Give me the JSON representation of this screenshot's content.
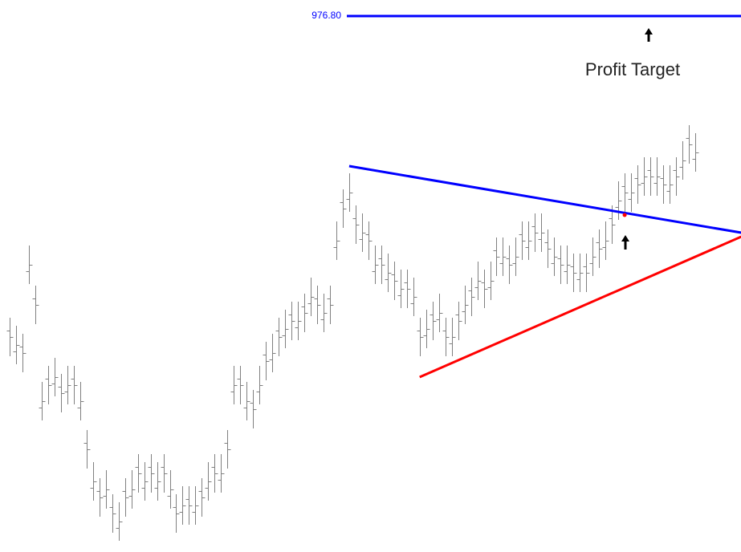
{
  "chart_data": {
    "type": "ohlc",
    "ylim": [
      809.8,
      981.8
    ],
    "bar_color": "#808080",
    "open": [
      878.8,
      872.3,
      873.8,
      897.3,
      888.8,
      854.8,
      863.8,
      862.3,
      861.3,
      859.8,
      863.8,
      854.8,
      843.8,
      829.8,
      828.8,
      827.3,
      823.8,
      817.3,
      828.8,
      827.3,
      836.3,
      829.8,
      836.3,
      829.8,
      836.3,
      827.3,
      823.8,
      822.3,
      826.3,
      822.3,
      828.8,
      829.8,
      836.3,
      832.3,
      843.8,
      859.8,
      863.8,
      854.8,
      856.3,
      859.8,
      871.3,
      869.8,
      878.8,
      877.3,
      883.8,
      879.8,
      886.3,
      887.3,
      888.8,
      882.3,
      888.8,
      904.8,
      918.8,
      919.8,
      913.8,
      907.3,
      908.8,
      897.3,
      901.3,
      894.8,
      896.3,
      889.8,
      893.8,
      887.3,
      878.8,
      877.3,
      883.8,
      882.3,
      878.8,
      874.8,
      883.8,
      884.8,
      891.3,
      892.3,
      893.8,
      892.3,
      903.8,
      899.8,
      901.3,
      899.8,
      908.8,
      904.8,
      911.3,
      907.3,
      906.3,
      899.8,
      901.3,
      897.3,
      898.8,
      894.8,
      898.8,
      899.8,
      906.3,
      904.8,
      913.8,
      917.3,
      923.8,
      919.8,
      926.3,
      924.8,
      928.8,
      924.8,
      926.3,
      922.3,
      928.8,
      929.8,
      938.8,
      932.3
    ],
    "high": [
      882.8,
      880.3,
      877.8,
      905.3,
      892.8,
      862.8,
      867.8,
      870.3,
      865.3,
      867.8,
      867.8,
      862.8,
      847.8,
      837.8,
      832.8,
      835.3,
      827.8,
      825.3,
      832.8,
      835.3,
      840.3,
      837.8,
      840.3,
      837.8,
      840.3,
      835.3,
      827.8,
      830.3,
      830.3,
      830.3,
      832.8,
      837.8,
      840.3,
      840.3,
      847.8,
      867.8,
      867.8,
      862.8,
      860.3,
      867.8,
      875.3,
      877.8,
      882.8,
      885.3,
      887.8,
      887.8,
      890.3,
      895.3,
      892.8,
      890.3,
      892.8,
      912.8,
      922.8,
      927.8,
      917.8,
      915.3,
      912.8,
      905.3,
      905.3,
      902.8,
      900.3,
      897.8,
      897.8,
      895.3,
      882.8,
      885.3,
      887.8,
      890.3,
      882.8,
      882.8,
      887.8,
      892.8,
      895.3,
      900.3,
      897.8,
      900.3,
      907.8,
      907.8,
      905.3,
      907.8,
      912.8,
      912.8,
      915.3,
      915.3,
      910.3,
      907.8,
      905.3,
      905.3,
      902.8,
      902.8,
      902.8,
      907.8,
      910.3,
      912.8,
      917.8,
      925.3,
      927.8,
      927.8,
      930.3,
      932.8,
      932.8,
      932.8,
      930.3,
      930.3,
      932.8,
      937.8,
      942.8,
      940.3
    ],
    "low": [
      870.8,
      868.3,
      865.8,
      893.3,
      880.8,
      850.8,
      855.8,
      858.3,
      853.3,
      855.8,
      855.8,
      850.8,
      835.8,
      825.8,
      820.8,
      823.3,
      815.8,
      813.3,
      820.8,
      823.3,
      828.3,
      825.8,
      828.3,
      825.8,
      828.3,
      823.3,
      815.8,
      818.3,
      818.3,
      818.3,
      820.8,
      825.8,
      828.3,
      828.3,
      835.8,
      855.8,
      855.8,
      850.8,
      848.3,
      855.8,
      863.3,
      865.8,
      870.8,
      873.3,
      875.8,
      875.8,
      878.3,
      883.3,
      880.8,
      878.3,
      880.8,
      900.8,
      910.8,
      915.8,
      905.8,
      903.3,
      900.8,
      893.3,
      893.3,
      890.8,
      888.3,
      885.8,
      885.8,
      883.3,
      870.8,
      873.3,
      875.8,
      878.3,
      870.8,
      870.8,
      875.8,
      880.8,
      883.3,
      888.3,
      885.8,
      888.3,
      895.8,
      895.8,
      893.3,
      895.8,
      900.8,
      900.8,
      903.3,
      903.3,
      898.3,
      895.8,
      893.3,
      893.3,
      890.8,
      890.8,
      890.8,
      895.8,
      898.3,
      900.8,
      905.8,
      913.3,
      915.8,
      915.8,
      918.3,
      920.8,
      920.8,
      920.8,
      918.3,
      918.3,
      920.8,
      925.8,
      930.8,
      928.3
    ],
    "close": [
      876.8,
      874.3,
      871.8,
      899.3,
      886.8,
      856.8,
      861.8,
      864.3,
      859.3,
      861.8,
      861.8,
      856.8,
      841.8,
      831.8,
      826.8,
      829.3,
      821.8,
      819.3,
      826.8,
      829.3,
      834.3,
      831.8,
      834.3,
      831.8,
      834.3,
      829.3,
      821.8,
      824.3,
      824.3,
      824.3,
      826.8,
      831.8,
      834.3,
      834.3,
      841.8,
      861.8,
      861.8,
      856.8,
      854.3,
      861.8,
      869.3,
      871.8,
      876.8,
      879.3,
      881.8,
      881.8,
      884.3,
      889.3,
      886.8,
      884.3,
      886.8,
      906.8,
      916.8,
      921.8,
      911.8,
      909.3,
      906.8,
      899.3,
      899.3,
      896.8,
      894.3,
      891.8,
      891.8,
      889.3,
      876.8,
      879.3,
      881.8,
      884.3,
      876.8,
      876.8,
      881.8,
      886.8,
      889.3,
      894.3,
      891.8,
      894.3,
      901.8,
      901.8,
      899.3,
      901.8,
      906.8,
      906.8,
      909.3,
      909.3,
      904.3,
      901.8,
      899.3,
      899.3,
      896.8,
      896.8,
      896.8,
      901.8,
      904.3,
      906.8,
      911.8,
      919.3,
      921.8,
      921.8,
      924.3,
      926.8,
      926.8,
      926.8,
      924.3,
      924.3,
      926.8,
      931.8,
      936.8,
      934.3
    ],
    "trendlines": [
      {
        "color": "#0000ff",
        "start": [
          53,
          930.05
        ],
        "end": [
          114.2,
          909.3
        ]
      },
      {
        "color": "#ff0000",
        "start": [
          64,
          864.3
        ],
        "end": [
          114.2,
          908.05
        ]
      }
    ],
    "target": {
      "value": 976.8,
      "label": "976.80",
      "color": "#0000ff"
    },
    "breakout": {
      "x": 96,
      "value": 914.8,
      "color": "#ff0000"
    },
    "annotation": "Profit Target"
  }
}
